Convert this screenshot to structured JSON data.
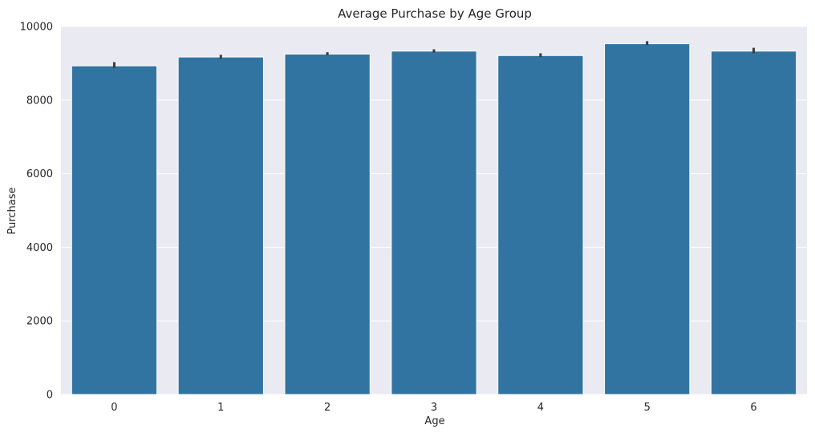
{
  "chart_data": {
    "type": "bar",
    "title": "Average Purchase by Age Group",
    "xlabel": "Age",
    "ylabel": "Purchase",
    "categories": [
      "0",
      "1",
      "2",
      "3",
      "4",
      "5",
      "6"
    ],
    "values": [
      8930,
      9170,
      9250,
      9330,
      9210,
      9530,
      9330
    ],
    "error_bars": [
      [
        8870,
        9030
      ],
      [
        9120,
        9230
      ],
      [
        9220,
        9300
      ],
      [
        9290,
        9380
      ],
      [
        9170,
        9270
      ],
      [
        9490,
        9600
      ],
      [
        9270,
        9420
      ]
    ],
    "ylim": [
      0,
      10000
    ],
    "yticks": [
      0,
      2000,
      4000,
      6000,
      8000,
      10000
    ],
    "grid": true,
    "legend": "none",
    "colors": {
      "bar": "#3274a1",
      "background": "#eaeaf2",
      "grid": "#ffffff",
      "error_bar": "#3b3b3b"
    }
  }
}
